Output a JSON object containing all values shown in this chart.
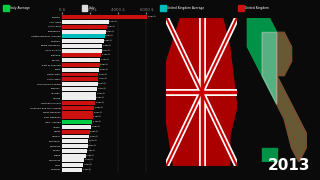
{
  "background_color": "#0a0a0a",
  "year": "2013",
  "bar_color_uk": "#cc1111",
  "bar_color_italy": "#eeeeee",
  "bar_color_uk_avg": "#00bbbb",
  "bar_color_italy_avg": "#00cc44",
  "x_ticks": [
    "0 $",
    "2000 $",
    "4000 $",
    "6000 $"
  ],
  "x_values": [
    0,
    2000,
    4000,
    6000
  ],
  "xlim": [
    0,
    7200
  ],
  "legend": [
    {
      "label": "Italy Average",
      "color": "#00cc44"
    },
    {
      "label": "Italy",
      "color": "#dddddd"
    },
    {
      "label": "United Kingdom Average",
      "color": "#00bbbb"
    },
    {
      "label": "United Kingdom",
      "color": "#cc1111"
    }
  ],
  "regions": [
    {
      "name": "London",
      "value": 6050,
      "type": "uk"
    },
    {
      "name": "Alto Adige",
      "value": 3320,
      "type": "italy"
    },
    {
      "name": "South East",
      "value": 3200,
      "type": "uk"
    },
    {
      "name": "Lombardia",
      "value": 3100,
      "type": "italy"
    },
    {
      "name": "United Kingdom Average",
      "value": 3050,
      "type": "uk_avg"
    },
    {
      "name": "Trentino",
      "value": 2980,
      "type": "italy"
    },
    {
      "name": "Emilia-Romagna",
      "value": 2880,
      "type": "italy"
    },
    {
      "name": "Valle D'Aosta",
      "value": 2820,
      "type": "italy"
    },
    {
      "name": "Scotland",
      "value": 2780,
      "type": "uk"
    },
    {
      "name": "Veneto",
      "value": 2730,
      "type": "italy"
    },
    {
      "name": "East of England",
      "value": 2680,
      "type": "uk"
    },
    {
      "name": "Lazio",
      "value": 2650,
      "type": "italy"
    },
    {
      "name": "North West",
      "value": 2600,
      "type": "uk"
    },
    {
      "name": "South West",
      "value": 2570,
      "type": "uk"
    },
    {
      "name": "Friuli-Venezia Giulia",
      "value": 2540,
      "type": "italy"
    },
    {
      "name": "Tuscany",
      "value": 2510,
      "type": "italy"
    },
    {
      "name": "Abruzzo",
      "value": 2420,
      "type": "italy"
    },
    {
      "name": "Liguria",
      "value": 2390,
      "type": "italy"
    },
    {
      "name": "Northern Ireland",
      "value": 2350,
      "type": "uk"
    },
    {
      "name": "Yorkshire and the Humber",
      "value": 2280,
      "type": "uk"
    },
    {
      "name": "West Midlands",
      "value": 2230,
      "type": "uk"
    },
    {
      "name": "East Midlands",
      "value": 2190,
      "type": "uk"
    },
    {
      "name": "Italy Average",
      "value": 2150,
      "type": "italy_avg"
    },
    {
      "name": "Apulia",
      "value": 2080,
      "type": "italy"
    },
    {
      "name": "Wales",
      "value": 1980,
      "type": "uk"
    },
    {
      "name": "Umbria",
      "value": 1930,
      "type": "italy"
    },
    {
      "name": "Sardegna",
      "value": 1870,
      "type": "italy"
    },
    {
      "name": "Piedmont",
      "value": 1820,
      "type": "italy"
    },
    {
      "name": "Molise",
      "value": 1760,
      "type": "italy"
    },
    {
      "name": "Puglia",
      "value": 1680,
      "type": "italy"
    },
    {
      "name": "Campania",
      "value": 1600,
      "type": "italy"
    },
    {
      "name": "Sicily",
      "value": 1530,
      "type": "italy"
    },
    {
      "name": "Calabria",
      "value": 1460,
      "type": "italy"
    }
  ]
}
